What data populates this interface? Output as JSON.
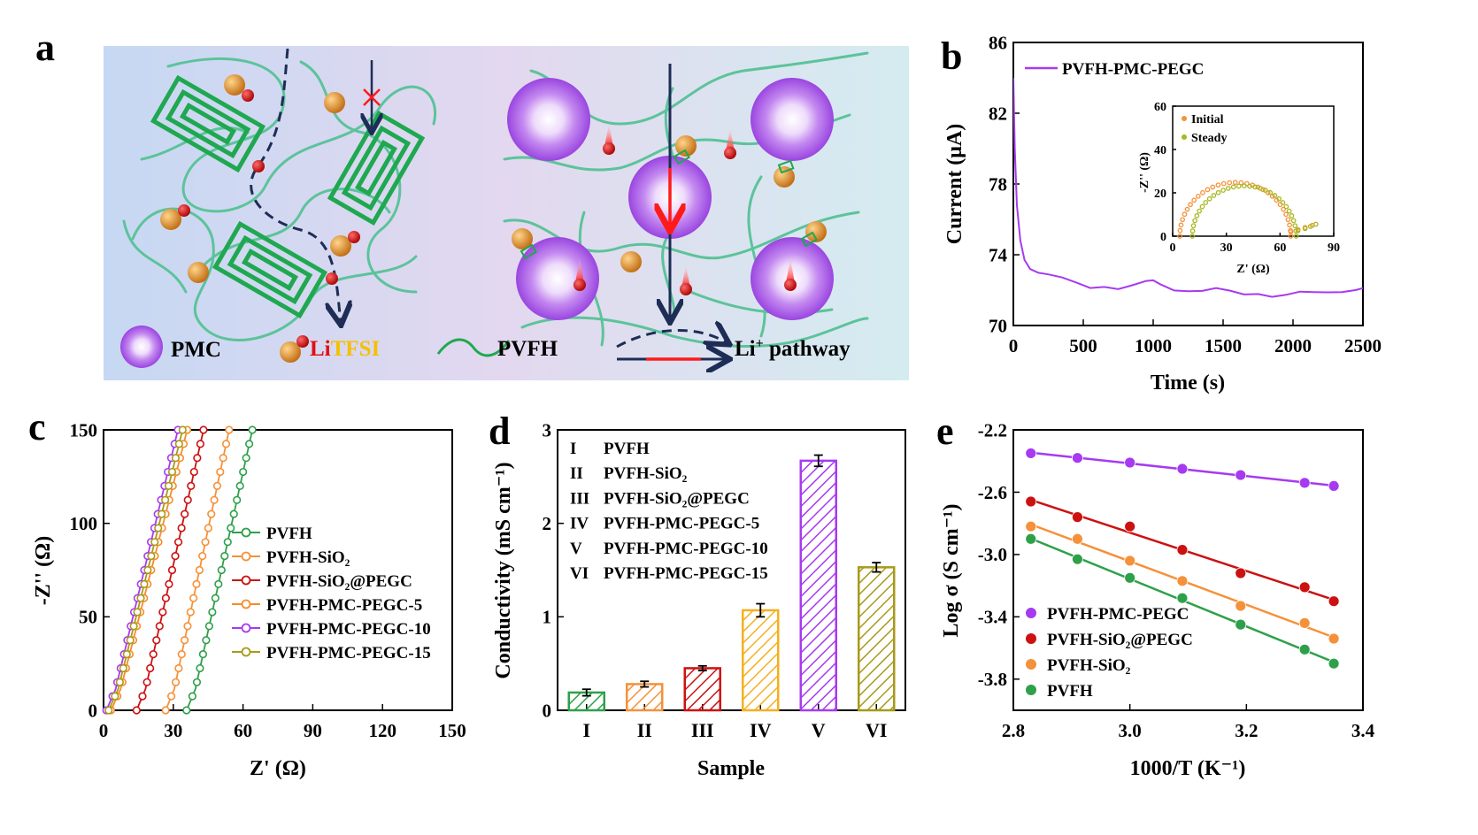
{
  "panel_labels": {
    "a": "a",
    "b": "b",
    "c": "c",
    "d": "d",
    "e": "e"
  },
  "schematic": {
    "legend": {
      "pmc": "PMC",
      "li": "Li",
      "tfsi": "TFSI",
      "pvfh": "PVFH",
      "pathway": "Li",
      "pathway_sup": "+",
      "pathway_rest": " pathway"
    },
    "colors": {
      "background_left": "#c9d9f2",
      "background_mid": "#dfd6ee",
      "background_right": "#d8ecf0",
      "chain": "#5cc39a",
      "block": "#1fa850",
      "path": "#1e2d55",
      "arrow_red": "#ff1a1a",
      "sphere": "#a855e8",
      "li_ball": "#cc0000",
      "tfsi_ball": "#e0902a",
      "tfsi_text": "#f5c000"
    }
  },
  "chart_data": [
    {
      "panel": "b",
      "type": "line",
      "xlabel": "Time (s)",
      "ylabel": "Current (μA)",
      "xlim": [
        0,
        2500
      ],
      "ylim": [
        70,
        86
      ],
      "xticks": [
        "0",
        "500",
        "1000",
        "1500",
        "2000",
        "2500"
      ],
      "yticks": [
        "70",
        "74",
        "78",
        "82",
        "86"
      ],
      "series": [
        {
          "name": "PVFH-PMC-PEGC",
          "color": "#a63af0",
          "x": [
            0,
            10,
            25,
            50,
            80,
            120,
            180,
            250,
            350,
            450,
            550,
            650,
            750,
            850,
            950,
            1000,
            1050,
            1150,
            1250,
            1350,
            1450,
            1550,
            1650,
            1750,
            1850,
            1950,
            2050,
            2150,
            2250,
            2350,
            2450,
            2500
          ],
          "y": [
            84.0,
            80.0,
            76.8,
            74.8,
            73.8,
            73.3,
            73.0,
            72.8,
            72.6,
            72.4,
            72.2,
            72.3,
            72.1,
            72.2,
            72.4,
            72.5,
            72.4,
            72.1,
            72.0,
            71.9,
            72.0,
            71.9,
            71.8,
            71.9,
            71.7,
            71.7,
            71.8,
            71.8,
            71.9,
            72.0,
            72.1,
            72.1
          ]
        }
      ],
      "inset": {
        "type": "scatter",
        "xlabel": "Z' (Ω)",
        "ylabel": "-Z'' (Ω)",
        "xlim": [
          0,
          90
        ],
        "ylim": [
          0,
          60
        ],
        "xticks": [
          "0",
          "30",
          "60",
          "90"
        ],
        "yticks": [
          "0",
          "20",
          "40",
          "60"
        ],
        "series": [
          {
            "name": "Initial",
            "color": "#f5913a",
            "center": 35,
            "radius": 31,
            "tail_x": [
              66,
              70,
              74,
              78
            ],
            "tail_y": [
              2,
              3,
              4,
              5
            ]
          },
          {
            "name": "Steady",
            "color": "#a8b820",
            "center": 40,
            "radius": 29,
            "tail_x": [
              70,
              74,
              77,
              80
            ],
            "tail_y": [
              2.5,
              3.5,
              4.5,
              5.5
            ]
          }
        ]
      }
    },
    {
      "panel": "c",
      "type": "scatter",
      "xlabel": "Z' (Ω)",
      "ylabel": "-Z'' (Ω)",
      "xlim": [
        0,
        150
      ],
      "ylim": [
        0,
        150
      ],
      "xticks": [
        "0",
        "30",
        "60",
        "90",
        "120",
        "150"
      ],
      "yticks": [
        "0",
        "50",
        "100",
        "150"
      ],
      "series": [
        {
          "name": "PVFH",
          "color": "#2ea04a",
          "x0": 37.5,
          "x1": 64
        },
        {
          "name": "PVFH-SiO₂",
          "color": "#f5913a",
          "x0": 28.5,
          "x1": 54
        },
        {
          "name": "PVFH-SiO₂@PEGC",
          "color": "#cc1111",
          "x0": 16,
          "x1": 43
        },
        {
          "name": "PVFH-PMC-PEGC-5",
          "color": "#f58c2a",
          "x0": 5,
          "x1": 36
        },
        {
          "name": "PVFH-PMC-PEGC-10",
          "color": "#a63af0",
          "x0": 3,
          "x1": 32
        },
        {
          "name": "PVFH-PMC-PEGC-15",
          "color": "#a89a1a",
          "x0": 4,
          "x1": 34
        }
      ]
    },
    {
      "panel": "d",
      "type": "bar",
      "xlabel": "Sample",
      "ylabel": "Conductivity (mS cm⁻¹)",
      "ylim": [
        0,
        3
      ],
      "yticks": [
        "0",
        "1",
        "2",
        "3"
      ],
      "categories": [
        "I",
        "II",
        "III",
        "IV",
        "V",
        "VI"
      ],
      "labels": [
        "PVFH",
        "PVFH-SiO₂",
        "PVFH-SiO₂@PEGC",
        "PVFH-PMC-PEGC-5",
        "PVFH-PMC-PEGC-10",
        "PVFH-PMC-PEGC-15"
      ],
      "values": [
        0.19,
        0.28,
        0.45,
        1.07,
        2.67,
        1.53
      ],
      "errors": [
        0.035,
        0.03,
        0.025,
        0.07,
        0.06,
        0.05
      ],
      "colors": [
        "#2ea04a",
        "#f5913a",
        "#cc1111",
        "#f5b020",
        "#a63af0",
        "#a89a1a"
      ]
    },
    {
      "panel": "e",
      "type": "scatter",
      "xlabel": "1000/T (K⁻¹)",
      "ylabel": "Log σ (S cm⁻¹)",
      "xlim": [
        2.8,
        3.4
      ],
      "ylim": [
        -4.0,
        -2.2
      ],
      "xticks": [
        "2.8",
        "3.0",
        "3.2",
        "3.4"
      ],
      "yticks": [
        "-3.8",
        "-3.4",
        "-3.0",
        "-2.6",
        "-2.2"
      ],
      "x": [
        2.83,
        2.91,
        3.0,
        3.09,
        3.19,
        3.3,
        3.35
      ],
      "series": [
        {
          "name": "PVFH-PMC-PEGC",
          "color": "#a63af0",
          "y": [
            -2.35,
            -2.38,
            -2.41,
            -2.45,
            -2.49,
            -2.54,
            -2.56
          ]
        },
        {
          "name": "PVFH-SiO₂@PEGC",
          "color": "#cc1111",
          "y": [
            -2.66,
            -2.76,
            -2.82,
            -2.97,
            -3.12,
            -3.21,
            -3.3
          ]
        },
        {
          "name": "PVFH-SiO₂",
          "color": "#f5913a",
          "y": [
            -2.82,
            -2.9,
            -3.04,
            -3.17,
            -3.33,
            -3.44,
            -3.54
          ]
        },
        {
          "name": "PVFH",
          "color": "#2ea04a",
          "y": [
            -2.9,
            -3.03,
            -3.15,
            -3.28,
            -3.45,
            -3.61,
            -3.7
          ]
        }
      ]
    }
  ]
}
